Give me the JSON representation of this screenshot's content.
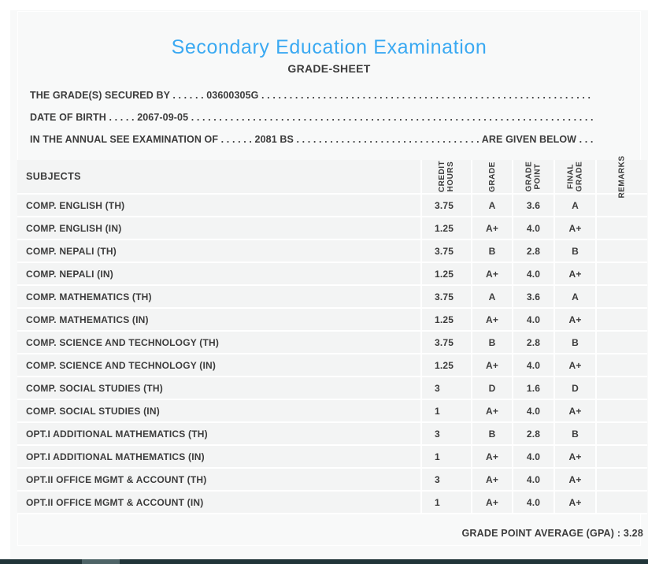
{
  "header": {
    "title": "Secondary Education Examination",
    "subtitle": "GRADE-SHEET"
  },
  "info_lines": {
    "secured_by": "THE GRADE(S) SECURED BY . . . . . . 03600305G . . . . . . . . . . . . . . . . . . . . . . . . . . . . . . . . . . . . . . . . . . . . . . . . . . . . . . . . . . . . . . . . . . . . . . . .",
    "date_of_birth": "DATE OF BIRTH . . . . . 2067-09-05 . . . . . . . . . . . . . . . . . . . . . . . . . . . . . . . . . . . . . . . . . . . . . . . . . . . . . . . . . . . . . . . . . . . . . . . . . .",
    "examination": "IN THE ANNUAL SEE EXAMINATION OF . . . . . . 2081 BS . . . . . . . . . . . . . . . . . . . . . . . . . . . . . . . . . ARE GIVEN BELOW . . ."
  },
  "table": {
    "columns": [
      {
        "label": "SUBJECTS"
      },
      {
        "lines": [
          "CREDIT",
          "HOURS"
        ]
      },
      {
        "lines": [
          "GRADE"
        ]
      },
      {
        "lines": [
          "GRADE",
          "POINT"
        ]
      },
      {
        "lines": [
          "FINAL",
          "GRADE"
        ]
      },
      {
        "lines": [
          "REMARKS"
        ]
      }
    ],
    "rows": [
      {
        "subject": "COMP. ENGLISH (TH)",
        "credit_hours": "3.75",
        "grade": "A",
        "grade_point": "3.6",
        "final_grade": "A",
        "remarks": ""
      },
      {
        "subject": "COMP. ENGLISH (IN)",
        "credit_hours": "1.25",
        "grade": "A+",
        "grade_point": "4.0",
        "final_grade": "A+",
        "remarks": ""
      },
      {
        "subject": "COMP. NEPALI (TH)",
        "credit_hours": "3.75",
        "grade": "B",
        "grade_point": "2.8",
        "final_grade": "B",
        "remarks": ""
      },
      {
        "subject": "COMP. NEPALI (IN)",
        "credit_hours": "1.25",
        "grade": "A+",
        "grade_point": "4.0",
        "final_grade": "A+",
        "remarks": ""
      },
      {
        "subject": "COMP. MATHEMATICS (TH)",
        "credit_hours": "3.75",
        "grade": "A",
        "grade_point": "3.6",
        "final_grade": "A",
        "remarks": ""
      },
      {
        "subject": "COMP. MATHEMATICS (IN)",
        "credit_hours": "1.25",
        "grade": "A+",
        "grade_point": "4.0",
        "final_grade": "A+",
        "remarks": ""
      },
      {
        "subject": "COMP. SCIENCE AND TECHNOLOGY (TH)",
        "credit_hours": "3.75",
        "grade": "B",
        "grade_point": "2.8",
        "final_grade": "B",
        "remarks": ""
      },
      {
        "subject": "COMP. SCIENCE AND TECHNOLOGY (IN)",
        "credit_hours": "1.25",
        "grade": "A+",
        "grade_point": "4.0",
        "final_grade": "A+",
        "remarks": ""
      },
      {
        "subject": "COMP. SOCIAL STUDIES (TH)",
        "credit_hours": "3",
        "grade": "D",
        "grade_point": "1.6",
        "final_grade": "D",
        "remarks": ""
      },
      {
        "subject": "COMP. SOCIAL STUDIES (IN)",
        "credit_hours": "1",
        "grade": "A+",
        "grade_point": "4.0",
        "final_grade": "A+",
        "remarks": ""
      },
      {
        "subject": "OPT.I ADDITIONAL MATHEMATICS (TH)",
        "credit_hours": "3",
        "grade": "B",
        "grade_point": "2.8",
        "final_grade": "B",
        "remarks": ""
      },
      {
        "subject": "OPT.I ADDITIONAL MATHEMATICS (IN)",
        "credit_hours": "1",
        "grade": "A+",
        "grade_point": "4.0",
        "final_grade": "A+",
        "remarks": ""
      },
      {
        "subject": "OPT.II OFFICE MGMT & ACCOUNT (TH)",
        "credit_hours": "3",
        "grade": "A+",
        "grade_point": "4.0",
        "final_grade": "A+",
        "remarks": ""
      },
      {
        "subject": "OPT.II OFFICE MGMT & ACCOUNT (IN)",
        "credit_hours": "1",
        "grade": "A+",
        "grade_point": "4.0",
        "final_grade": "A+",
        "remarks": ""
      }
    ]
  },
  "footer": {
    "gpa_text": "GRADE POINT AVERAGE (GPA) : 3.28"
  },
  "colors": {
    "title_blue": "#3aa9f2",
    "text_dark": "#3b3b3b",
    "row_bg": "#f3f4f4",
    "panel_bg": "#f8f9f9",
    "scrollbar_track": "#213539",
    "scrollbar_thumb": "#4e6467"
  }
}
